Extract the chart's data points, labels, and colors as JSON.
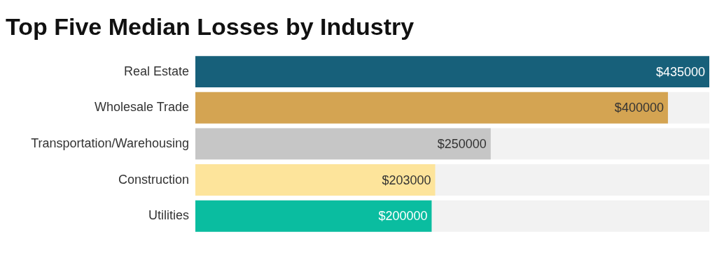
{
  "chart_data": {
    "type": "bar",
    "orientation": "horizontal",
    "title": "Top Five Median Losses by Industry",
    "categories": [
      "Real Estate",
      "Wholesale Trade",
      "Transportation/Warehousing",
      "Construction",
      "Utilities"
    ],
    "values": [
      435000,
      400000,
      250000,
      203000,
      200000
    ],
    "colors": [
      "#17607a",
      "#d4a452",
      "#c6c6c6",
      "#fde49b",
      "#0abda0"
    ],
    "value_labels": [
      "$435000",
      "$400000",
      "$250000",
      "$203000",
      "$200000"
    ],
    "xlim": [
      0,
      435000
    ],
    "tick_labels": "y",
    "grid": false,
    "legend": false
  }
}
